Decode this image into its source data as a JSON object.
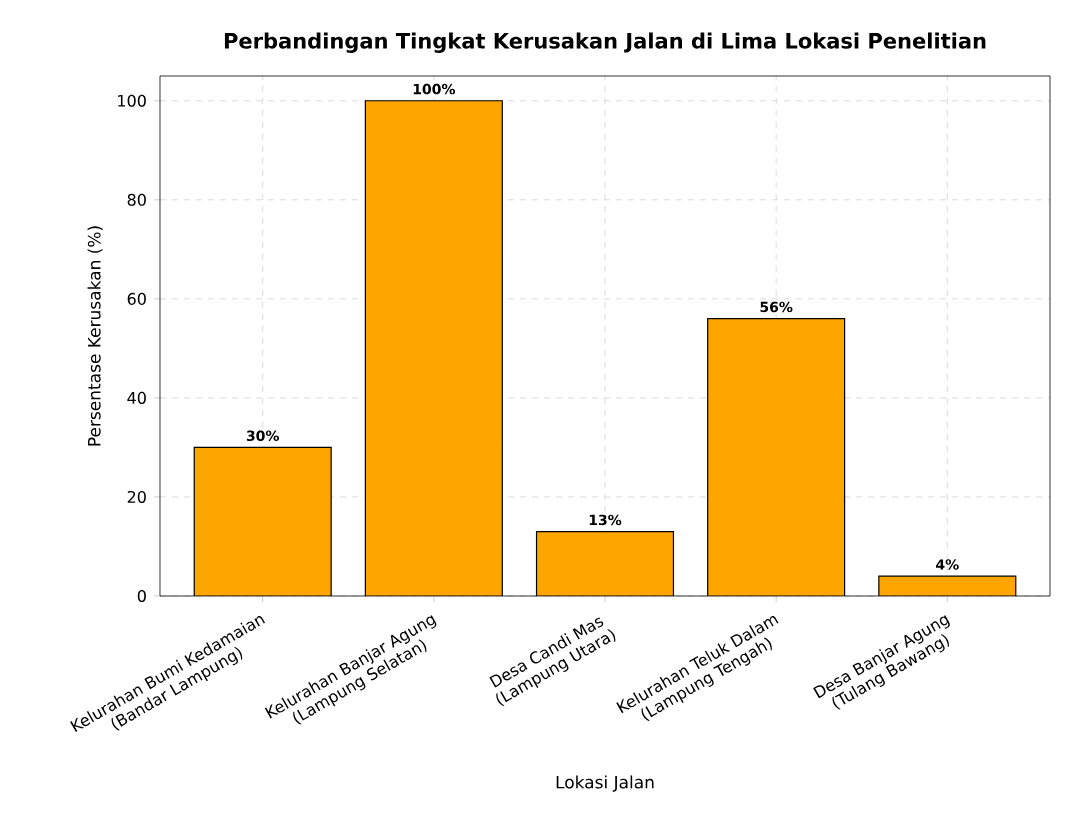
{
  "chart_data": {
    "type": "bar",
    "title": "Perbandingan Tingkat Kerusakan Jalan di Lima Lokasi Penelitian",
    "xlabel": "Lokasi Jalan",
    "ylabel": "Persentase Kerusakan (%)",
    "categories": [
      "Kelurahan Bumi Kedamaian\n(Bandar Lampung)",
      "Kelurahan Banjar Agung\n(Lampung Selatan)",
      "Desa Candi Mas\n(Lampung Utara)",
      "Kelurahan Teluk Dalam\n(Lampung Tengah)",
      "Desa Banjar Agung\n(Tulang Bawang)"
    ],
    "values": [
      30,
      100,
      13,
      56,
      4
    ],
    "value_labels": [
      "30%",
      "100%",
      "13%",
      "56%",
      "4%"
    ],
    "color": "#ffa500",
    "ylim": [
      0,
      105
    ],
    "yticks": [
      0,
      20,
      40,
      60,
      80,
      100
    ],
    "grid": true
  }
}
